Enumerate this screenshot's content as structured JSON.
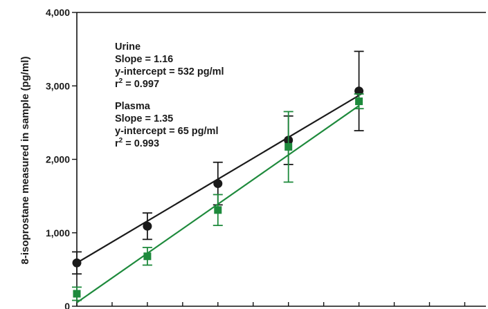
{
  "chart_data": {
    "type": "scatter",
    "title": "",
    "xlabel": "",
    "ylabel": "8-isoprostane measured in sample (pg/ml)",
    "xlim": [
      0,
      2900
    ],
    "ylim": [
      0,
      4000
    ],
    "y_ticks": [
      0,
      1000,
      2000,
      3000,
      4000
    ],
    "y_tick_labels": [
      "0",
      "1,000",
      "2,000",
      "3,000",
      "4,000"
    ],
    "x_ticks": [
      0,
      250,
      500,
      750,
      1000,
      1250,
      1500,
      1750,
      2000,
      2250,
      2500,
      2750
    ],
    "grid": false,
    "legend": "none",
    "series": [
      {
        "key": "urine",
        "color": "#1a1a1a",
        "marker": "circle",
        "x": [
          0,
          500,
          1000,
          1500,
          2000
        ],
        "y": [
          590,
          1090,
          1670,
          2260,
          2930
        ],
        "err": [
          150,
          180,
          290,
          330,
          540
        ],
        "fit": {
          "slope": 1.16,
          "intercept": 532
        }
      },
      {
        "key": "plasma",
        "color": "#1e8a3c",
        "marker": "square",
        "x": [
          0,
          500,
          1000,
          1500,
          2000
        ],
        "y": [
          170,
          680,
          1310,
          2170,
          2790
        ],
        "err": [
          90,
          120,
          210,
          480,
          100
        ],
        "fit": {
          "slope": 1.35,
          "intercept": 65
        }
      }
    ],
    "annotations": {
      "urine": {
        "name": "Urine",
        "slope": "Slope = 1.16",
        "intercept": "y-intercept = 532 pg/ml",
        "r2_prefix": "r",
        "r2_sup": "2",
        "r2_value": " = 0.997"
      },
      "plasma": {
        "name": "Plasma",
        "slope": "Slope = 1.35",
        "intercept": "y-intercept = 65 pg/ml",
        "r2_prefix": "r",
        "r2_sup": "2",
        "r2_value": " = 0.993"
      }
    }
  }
}
